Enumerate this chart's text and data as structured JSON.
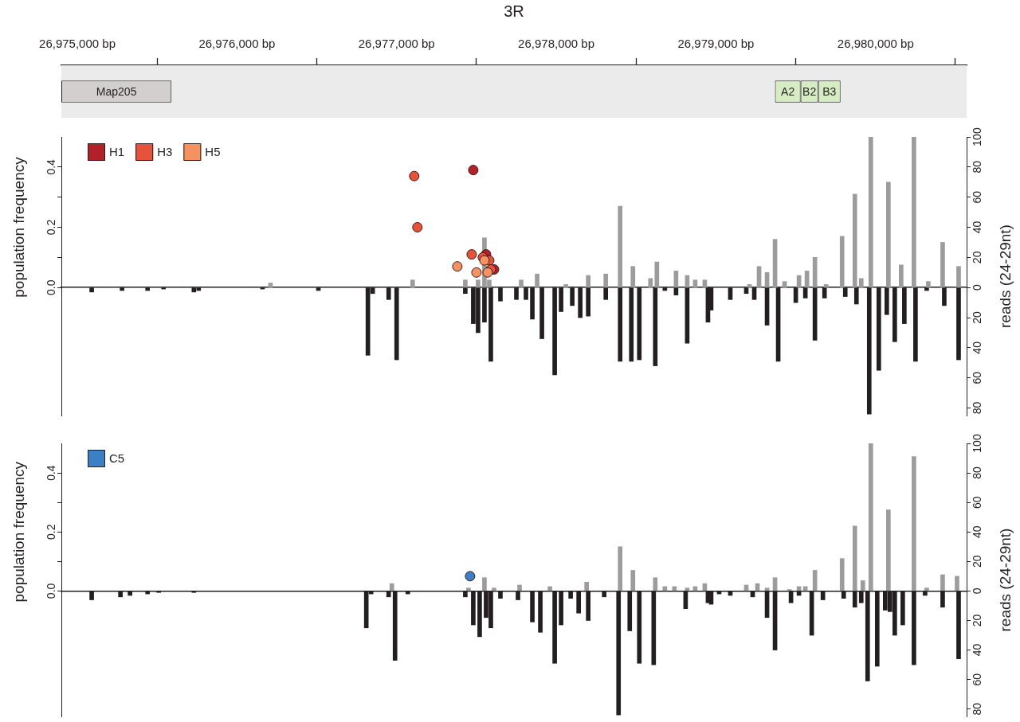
{
  "chart_data": [
    {
      "type": "bar",
      "orientation": "horizontal",
      "title": "3R",
      "categories": [
        null
      ],
      "xlim": [
        26974900,
        26980570
      ],
      "xticks": [
        {
          "value": 26975000,
          "label": "26,975,000 bp"
        },
        {
          "value": 26975500,
          "label": null
        },
        {
          "value": 26976000,
          "label": "26,976,000 bp"
        },
        {
          "value": 26976500,
          "label": null
        },
        {
          "value": 26977000,
          "label": "26,977,000 bp"
        },
        {
          "value": 26977500,
          "label": null
        },
        {
          "value": 26978000,
          "label": "26,978,000 bp"
        },
        {
          "value": 26978500,
          "label": null
        },
        {
          "value": 26979000,
          "label": "26,979,000 bp"
        },
        {
          "value": 26979500,
          "label": null
        },
        {
          "value": 26980000,
          "label": "26,980,000 bp"
        },
        {
          "value": 26980500,
          "label": null
        }
      ],
      "tick_labels": "x",
      "bands": [
        {
          "axis": "x",
          "from": 26974900,
          "to": 26980570,
          "color": "#ebebeb"
        }
      ],
      "series": [
        {
          "name": "Map205",
          "color": "#d3cfcf",
          "base": [
            26974900
          ],
          "values": [
            690
          ]
        },
        {
          "name": "A2",
          "color": "#d6ecc3",
          "base": [
            26979370
          ],
          "values": [
            160
          ]
        },
        {
          "name": "B2",
          "color": "#d6ecc3",
          "base": [
            26979530
          ],
          "values": [
            110
          ]
        },
        {
          "name": "B3",
          "color": "#d6ecc3",
          "base": [
            26979640
          ],
          "values": [
            140
          ]
        }
      ]
    },
    {
      "type": "bar",
      "ylabel": "population frequency",
      "y2label": "reads (24-29nt)",
      "xlim": [
        26974900,
        26980570
      ],
      "ylim": [
        -0.425,
        0.5
      ],
      "yticks": [
        {
          "value": 0,
          "label": "0.0"
        },
        {
          "value": 0.1,
          "label": null
        },
        {
          "value": 0.2,
          "label": "0.2"
        },
        {
          "value": 0.3,
          "label": null
        },
        {
          "value": 0.4,
          "label": "0.4"
        }
      ],
      "y2lim": [
        -85,
        100
      ],
      "y2ticks": [
        {
          "value": -80,
          "label": "80"
        },
        {
          "value": -60,
          "label": "60"
        },
        {
          "value": -40,
          "label": "40"
        },
        {
          "value": -20,
          "label": "20"
        },
        0,
        20,
        40,
        60,
        80,
        100
      ],
      "tick_labels": "y",
      "legend": "top left",
      "marker": "circle",
      "series": [
        {
          "axis": "y2",
          "color": "#9c9c9c",
          "x": [
            26976210,
            26977100,
            26977430,
            26977510,
            26977550,
            26977580,
            26977780,
            26977880,
            26978060,
            26978200,
            26978310,
            26978400,
            26978480,
            26978590,
            26978630,
            26978750,
            26978820,
            26978870,
            26978930,
            26979210,
            26979270,
            26979320,
            26979370,
            26979430,
            26979520,
            26979570,
            26979620,
            26979690,
            26979790,
            26979870,
            26979910,
            26979970,
            26980080,
            26980160,
            26980240,
            26980330,
            26980420,
            26980520
          ],
          "values": [
            3,
            5,
            5,
            5,
            33,
            5,
            5,
            9,
            2,
            8,
            9,
            54,
            14,
            6,
            17,
            11,
            8,
            5,
            5,
            2,
            14,
            10,
            32,
            4,
            8,
            11,
            20,
            2,
            34,
            62,
            6,
            100,
            70,
            15,
            100,
            4,
            30,
            14
          ]
        },
        {
          "axis": "y2",
          "color": "#231f20",
          "x": [
            26975090,
            26975280,
            26975440,
            26975540,
            26975730,
            26975760,
            26976160,
            26976510,
            26976820,
            26976850,
            26976950,
            26977000,
            26977430,
            26977480,
            26977510,
            26977550,
            26977590,
            26977650,
            26977750,
            26977810,
            26977850,
            26977910,
            26977990,
            26978030,
            26978100,
            26978150,
            26978200,
            26978310,
            26978400,
            26978470,
            26978520,
            26978620,
            26978680,
            26978750,
            26978820,
            26978950,
            26978970,
            26979090,
            26979190,
            26979240,
            26979320,
            26979390,
            26979500,
            26979560,
            26979620,
            26979680,
            26979810,
            26979880,
            26979960,
            26980020,
            26980070,
            26980120,
            26980180,
            26980250,
            26980320,
            26980430,
            26980520
          ],
          "values": [
            -3,
            -2,
            -2,
            -1,
            -3,
            -2,
            -1,
            -2,
            -45,
            -4,
            -8,
            -48,
            -4,
            -24,
            -30,
            -23,
            -49,
            -9,
            -8,
            -8,
            -21,
            -34,
            -58,
            -16,
            -12,
            -20,
            -19,
            -8,
            -49,
            -49,
            -48,
            -52,
            -2,
            -5,
            -37,
            -23,
            -15,
            -8,
            -4,
            -8,
            -25,
            -49,
            -10,
            -7,
            -35,
            -7,
            -6,
            -11,
            -84,
            -55,
            -18,
            -36,
            -24,
            -49,
            -2,
            -12,
            -48
          ]
        },
        {
          "type": "scatter",
          "name": "H1",
          "color": "#b2202a",
          "x": [
            26977480,
            26977560,
            26977610
          ],
          "values": [
            0.39,
            0.11,
            0.06
          ]
        },
        {
          "type": "scatter",
          "name": "H3",
          "color": "#e5533b",
          "x": [
            26977110,
            26977130,
            26977470,
            26977540,
            26977580,
            26977590
          ],
          "values": [
            0.37,
            0.2,
            0.11,
            0.1,
            0.09,
            0.06
          ]
        },
        {
          "type": "scatter",
          "name": "H5",
          "color": "#f69262",
          "x": [
            26977380,
            26977500,
            26977550,
            26977570
          ],
          "values": [
            0.07,
            0.05,
            0.09,
            0.05
          ]
        }
      ]
    },
    {
      "type": "bar",
      "ylabel": "population frequency",
      "y2label": "reads (24-29nt)",
      "xlim": [
        26974900,
        26980570
      ],
      "ylim": [
        -0.425,
        0.5
      ],
      "yticks": [
        {
          "value": 0,
          "label": "0.0"
        },
        {
          "value": 0.1,
          "label": null
        },
        {
          "value": 0.2,
          "label": "0.2"
        },
        {
          "value": 0.3,
          "label": null
        },
        {
          "value": 0.4,
          "label": "0.4"
        }
      ],
      "y2lim": [
        -85,
        100
      ],
      "y2ticks": [
        {
          "value": -80,
          "label": "80"
        },
        {
          "value": -60,
          "label": "60"
        },
        {
          "value": -40,
          "label": "40"
        },
        {
          "value": -20,
          "label": "20"
        },
        0,
        20,
        40,
        60,
        80,
        100
      ],
      "tick_labels": "y",
      "legend": "top left",
      "marker": "circle",
      "series": [
        {
          "axis": "y2",
          "color": "#9c9c9c",
          "x": [
            26976970,
            26977450,
            26977550,
            26977610,
            26977770,
            26977960,
            26978190,
            26978400,
            26978480,
            26978620,
            26978680,
            26978740,
            26978820,
            26978870,
            26978930,
            26979190,
            26979260,
            26979320,
            26979370,
            26979460,
            26979520,
            26979560,
            26979620,
            26979790,
            26979870,
            26979920,
            26979970,
            26980080,
            26980240,
            26980320,
            26980420,
            26980510
          ],
          "values": [
            5,
            2,
            9,
            2,
            4,
            3,
            6,
            30,
            14,
            9,
            3,
            3,
            2,
            3,
            5,
            4,
            5,
            2,
            9,
            1,
            3,
            3,
            14,
            22,
            44,
            7,
            100,
            55,
            91,
            2,
            11,
            10
          ]
        },
        {
          "axis": "y2",
          "color": "#231f20",
          "x": [
            26975090,
            26975270,
            26975330,
            26975440,
            26975510,
            26975730,
            26976810,
            26976840,
            26976950,
            26976990,
            26977070,
            26977430,
            26977480,
            26977520,
            26977560,
            26977590,
            26977650,
            26977760,
            26977850,
            26977900,
            26977990,
            26978030,
            26978090,
            26978140,
            26978200,
            26978300,
            26978390,
            26978460,
            26978520,
            26978610,
            26978810,
            26978950,
            26978970,
            26979020,
            26979090,
            26979230,
            26979320,
            26979370,
            26979470,
            26979520,
            26979600,
            26979670,
            26979800,
            26979870,
            26979910,
            26979950,
            26980010,
            26980060,
            26980090,
            26980120,
            26980170,
            26980240,
            26980310,
            26980420,
            26980520
          ],
          "values": [
            -6,
            -4,
            -3,
            -2,
            -1,
            -1,
            -25,
            -2,
            -4,
            -47,
            -2,
            -4,
            -23,
            -31,
            -18,
            -25,
            -5,
            -6,
            -21,
            -28,
            -49,
            -23,
            -5,
            -15,
            -20,
            -4,
            -84,
            -27,
            -49,
            -50,
            -12,
            -8,
            -9,
            -2,
            -3,
            -4,
            -18,
            -40,
            -8,
            -3,
            -30,
            -6,
            -5,
            -11,
            -8,
            -61,
            -51,
            -13,
            -14,
            -30,
            -23,
            -50,
            -3,
            -11,
            -46
          ]
        },
        {
          "type": "scatter",
          "name": "C5",
          "color": "#3b7fc5",
          "x": [
            26977460
          ],
          "values": [
            0.05
          ]
        }
      ]
    }
  ]
}
